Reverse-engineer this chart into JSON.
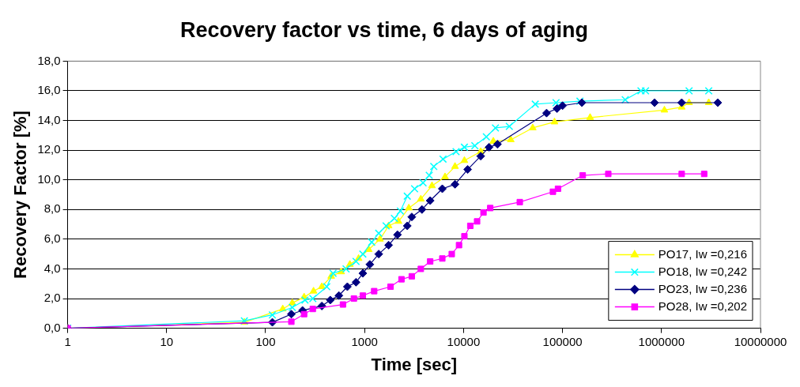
{
  "chart_data": {
    "type": "line",
    "title": "Recovery factor vs time, 6 days of aging",
    "xlabel": "Time [sec]",
    "ylabel": "Recovery Factor [%]",
    "log": "x",
    "xlim": [
      1,
      10000000
    ],
    "xticks": [
      1,
      10,
      100,
      1000,
      10000,
      100000,
      1000000,
      10000000
    ],
    "ylim": [
      0,
      18
    ],
    "yticks": [
      {
        "value": 0,
        "label": "0,0"
      },
      {
        "value": 2,
        "label": "2,0"
      },
      {
        "value": 4,
        "label": "4,0"
      },
      {
        "value": 6,
        "label": "6,0"
      },
      {
        "value": 8,
        "label": "8,0"
      },
      {
        "value": 10,
        "label": "10,0"
      },
      {
        "value": 12,
        "label": "12,0"
      },
      {
        "value": 14,
        "label": "14,0"
      },
      {
        "value": 16,
        "label": "16,0"
      },
      {
        "value": 18,
        "label": "18,0"
      }
    ],
    "grid": "y",
    "legend": "bottom right",
    "line_style": "solid",
    "series": [
      {
        "name": "PO17, Iw =0,216",
        "color": "#ffff00",
        "marker": "triangle",
        "x": [
          1,
          61,
          149,
          186,
          245,
          305,
          370,
          460,
          580,
          710,
          870,
          1100,
          1430,
          1750,
          2200,
          2800,
          3700,
          4800,
          6500,
          8200,
          10200,
          14900,
          20000,
          30000,
          50000,
          83000,
          190000,
          1070000,
          1600000,
          1900000,
          3000000
        ],
        "values": [
          0,
          0.4,
          1.3,
          1.7,
          2.1,
          2.5,
          2.8,
          3.5,
          3.8,
          4.3,
          4.7,
          5.3,
          6.0,
          6.9,
          7.2,
          8.1,
          8.7,
          9.6,
          10.2,
          10.9,
          11.3,
          11.9,
          12.6,
          12.7,
          13.5,
          13.9,
          14.2,
          14.7,
          14.9,
          15.2,
          15.2
        ]
      },
      {
        "name": "PO18, Iw =0,242",
        "color": "#00ffff",
        "marker": "cross",
        "x": [
          1,
          61,
          117,
          186,
          250,
          300,
          415,
          480,
          650,
          820,
          960,
          1180,
          1390,
          1650,
          2000,
          2300,
          2700,
          3200,
          3900,
          4500,
          5000,
          6200,
          8400,
          10200,
          13000,
          17000,
          21000,
          29000,
          53000,
          86000,
          150000,
          430000,
          620000,
          690000,
          1900000,
          3000000
        ],
        "values": [
          0,
          0.5,
          0.9,
          1.4,
          1.9,
          2.0,
          2.8,
          3.7,
          4.0,
          4.5,
          5.0,
          5.8,
          6.4,
          6.9,
          7.4,
          7.9,
          8.9,
          9.4,
          9.8,
          10.3,
          10.9,
          11.4,
          11.9,
          12.2,
          12.3,
          12.9,
          13.5,
          13.6,
          15.1,
          15.2,
          15.3,
          15.4,
          16.0,
          16.0,
          16.0,
          16.0
        ]
      },
      {
        "name": "PO23, Iw =0,236",
        "color": "#000080",
        "marker": "diamond",
        "x": [
          1,
          117,
          182,
          236,
          370,
          450,
          550,
          670,
          820,
          960,
          1130,
          1390,
          1750,
          2150,
          2700,
          3000,
          3800,
          4600,
          6100,
          8200,
          11000,
          14900,
          18100,
          22000,
          69000,
          88000,
          100000,
          157000,
          850000,
          1600000,
          3700000
        ],
        "values": [
          0,
          0.4,
          0.95,
          1.2,
          1.5,
          1.9,
          2.2,
          2.8,
          3.1,
          3.7,
          4.3,
          5.0,
          5.6,
          6.3,
          6.9,
          7.5,
          8.0,
          8.6,
          9.4,
          9.7,
          10.7,
          11.6,
          12.2,
          12.4,
          14.5,
          14.8,
          15.0,
          15.2,
          15.2,
          15.2,
          15.2
        ]
      },
      {
        "name": "PO28, Iw =0,202",
        "color": "#ff00ff",
        "marker": "square",
        "x": [
          1,
          182,
          245,
          300,
          605,
          780,
          960,
          1250,
          1830,
          2360,
          3000,
          3700,
          4600,
          6100,
          7600,
          9000,
          10200,
          11700,
          13700,
          15900,
          18600,
          37000,
          80000,
          90000,
          160000,
          290000,
          1600000,
          2700000
        ],
        "values": [
          0,
          0.44,
          0.95,
          1.3,
          1.6,
          2.0,
          2.2,
          2.5,
          2.8,
          3.3,
          3.5,
          4.0,
          4.5,
          4.7,
          5.0,
          5.6,
          6.2,
          6.9,
          7.2,
          7.8,
          8.1,
          8.5,
          9.2,
          9.4,
          10.3,
          10.4,
          10.4,
          10.4
        ]
      }
    ]
  }
}
